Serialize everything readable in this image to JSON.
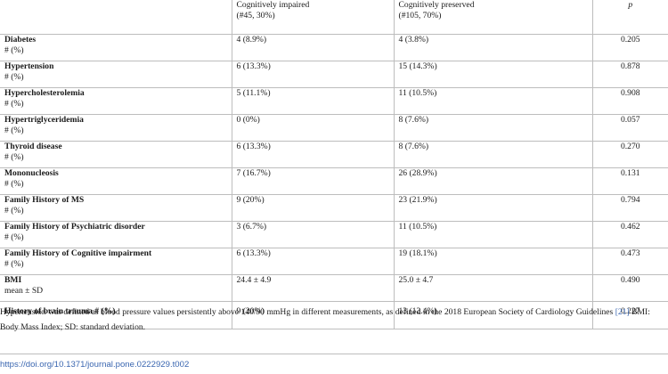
{
  "table": {
    "headers": [
      "",
      "Cognitively impaired",
      "Cognitively preserved",
      "p"
    ],
    "header_sub": [
      "",
      "(#45, 30%)",
      "(#105, 70%)",
      ""
    ],
    "rows": [
      {
        "label": "Diabetes",
        "unit": "# (%)",
        "impaired": "4 (8.9%)",
        "preserved": "4 (3.8%)",
        "p": "0.205"
      },
      {
        "label": "Hypertension",
        "unit": "# (%)",
        "impaired": "6 (13.3%)",
        "preserved": "15 (14.3%)",
        "p": "0.878"
      },
      {
        "label": "Hypercholesterolemia",
        "unit": "# (%)",
        "impaired": "5 (11.1%)",
        "preserved": "11 (10.5%)",
        "p": "0.908"
      },
      {
        "label": "Hypertriglyceridemia",
        "unit": "# (%)",
        "impaired": "0 (0%)",
        "preserved": "8 (7.6%)",
        "p": "0.057"
      },
      {
        "label": "Thyroid disease",
        "unit": "# (%)",
        "impaired": "6 (13.3%)",
        "preserved": "8 (7.6%)",
        "p": "0.270"
      },
      {
        "label": "Mononucleosis",
        "unit": "# (%)",
        "impaired": "7 (16.7%)",
        "preserved": "26 (28.9%)",
        "p": "0.131"
      },
      {
        "label": "Family History of MS",
        "unit": "# (%)",
        "impaired": "9 (20%)",
        "preserved": "23 (21.9%)",
        "p": "0.794"
      },
      {
        "label": "Family History of Psychiatric disorder",
        "unit": "# (%)",
        "impaired": "3 (6.7%)",
        "preserved": "11 (10.5%)",
        "p": "0.462"
      },
      {
        "label": "Family History of Cognitive impairment",
        "unit": "# (%)",
        "impaired": "6 (13.3%)",
        "preserved": "19 (18.1%)",
        "p": "0.473"
      },
      {
        "label": "BMI",
        "unit": "mean ± SD",
        "impaired": "24.4 ± 4.9",
        "preserved": "25.0 ± 4.7",
        "p": "0.490"
      },
      {
        "label": "History of brain trauma # (%)",
        "unit": "",
        "impaired": "9 (20%)",
        "preserved": "13 (12.4%)",
        "p": "0.227"
      }
    ]
  },
  "footnote": {
    "before_cite": "Hypertension was defined as blood pressure values persistently above 140/90 mmHg in different measurements, as defined in the 2018 European Society of Cardiology Guidelines ",
    "cite": "[21]",
    "after_cite": " BMI: Body Mass Index; SD: standard deviation."
  },
  "doi": "https://doi.org/10.1371/journal.pone.0222929.t002"
}
